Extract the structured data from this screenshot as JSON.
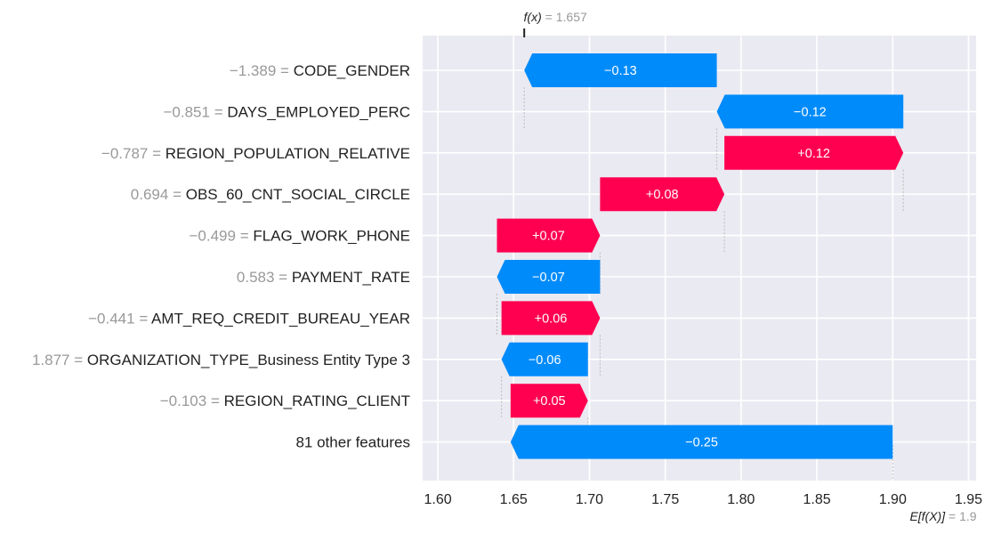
{
  "chart_data": {
    "type": "waterfall",
    "fx_label": "f(x)",
    "fx_value": 1.657,
    "fx_text": "1.657",
    "ex_label": "E[f(X)]",
    "ex_value": 1.9,
    "ex_text": "1.9",
    "xlim": [
      1.59,
      1.955
    ],
    "xticks": [
      {
        "value": 1.6,
        "label": "1.60"
      },
      {
        "value": 1.65,
        "label": "1.65"
      },
      {
        "value": 1.7,
        "label": "1.70"
      },
      {
        "value": 1.75,
        "label": "1.75"
      },
      {
        "value": 1.8,
        "label": "1.80"
      },
      {
        "value": 1.85,
        "label": "1.85"
      },
      {
        "value": 1.9,
        "label": "1.90"
      },
      {
        "value": 1.95,
        "label": "1.95"
      }
    ],
    "grid": true,
    "colors": {
      "positive": "#ff0051",
      "negative": "#008bfb",
      "background": "#eaeaf2"
    },
    "features": [
      {
        "value_text": "−1.389",
        "name": "CODE_GENDER",
        "start": 1.784,
        "end": 1.657,
        "label": "−0.13"
      },
      {
        "value_text": "−0.851",
        "name": "DAYS_EMPLOYED_PERC",
        "start": 1.907,
        "end": 1.784,
        "label": "−0.12"
      },
      {
        "value_text": "−0.787",
        "name": "REGION_POPULATION_RELATIVE",
        "start": 1.789,
        "end": 1.907,
        "label": "+0.12"
      },
      {
        "value_text": "0.694",
        "name": "OBS_60_CNT_SOCIAL_CIRCLE",
        "start": 1.707,
        "end": 1.789,
        "label": "+0.08"
      },
      {
        "value_text": "−0.499",
        "name": "FLAG_WORK_PHONE",
        "start": 1.639,
        "end": 1.707,
        "label": "+0.07"
      },
      {
        "value_text": "0.583",
        "name": "PAYMENT_RATE",
        "start": 1.707,
        "end": 1.639,
        "label": "−0.07"
      },
      {
        "value_text": "−0.441",
        "name": "AMT_REQ_CREDIT_BUREAU_YEAR",
        "start": 1.642,
        "end": 1.707,
        "label": "+0.06"
      },
      {
        "value_text": "1.877",
        "name": "ORGANIZATION_TYPE_Business Entity Type 3",
        "start": 1.699,
        "end": 1.642,
        "label": "−0.06"
      },
      {
        "value_text": "−0.103",
        "name": "REGION_RATING_CLIENT",
        "start": 1.648,
        "end": 1.699,
        "label": "+0.05"
      },
      {
        "value_text": "",
        "name": "81 other features",
        "start": 1.9,
        "end": 1.648,
        "label": "−0.25"
      }
    ]
  }
}
